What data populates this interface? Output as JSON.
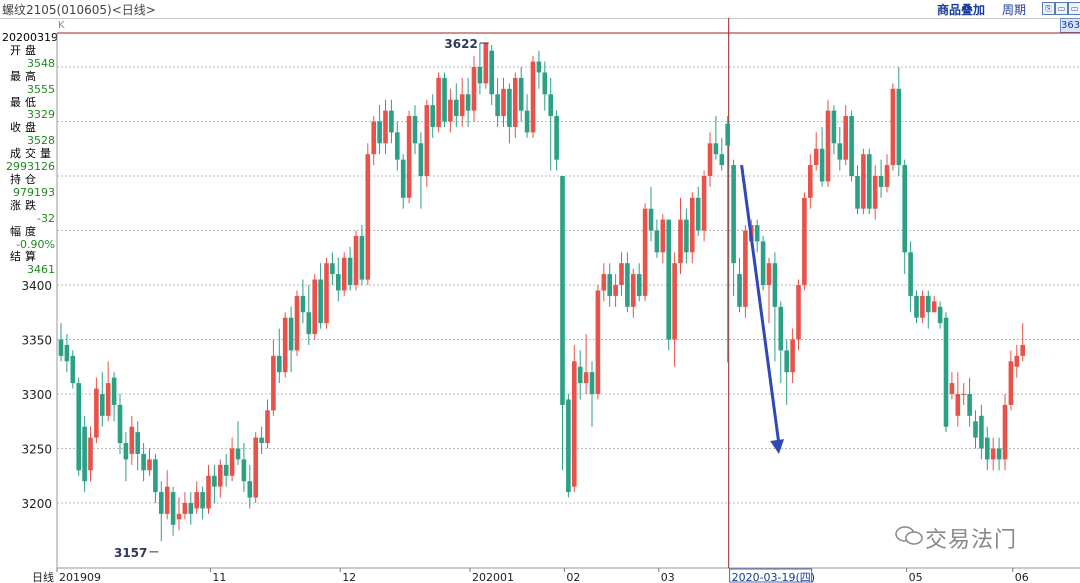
{
  "header": {
    "title": "螺纹2105(010605)<日线>",
    "overlay_label": "商品叠加",
    "period_label": "周期",
    "k_mark": "K",
    "corner_value": "363"
  },
  "info_panel": {
    "date": "20200319",
    "rows": [
      {
        "label": "开盘",
        "value": "3548"
      },
      {
        "label": "最高",
        "value": "3555"
      },
      {
        "label": "最低",
        "value": "3329"
      },
      {
        "label": "收盘",
        "value": "3528"
      },
      {
        "label": "成交量",
        "value": "2993126"
      },
      {
        "label": "持仓",
        "value": "979193"
      },
      {
        "label": "涨跌",
        "value": "-32"
      },
      {
        "label": "幅度",
        "value": "-0.90%"
      },
      {
        "label": "结算",
        "value": "3461"
      }
    ]
  },
  "watermark": "交易法门",
  "colors": {
    "up": "#e8524a",
    "down": "#2aa085",
    "grid": "#b9b9b9",
    "crosshair": "#a02020",
    "arrow": "#2f48b8",
    "axis_text": "#222222"
  },
  "chart_data": {
    "type": "candlestick",
    "title": "螺纹2105(010605)<日线>",
    "ylim": [
      3150,
      3640
    ],
    "y_ticks": [
      3200,
      3250,
      3300,
      3350,
      3400
    ],
    "x_axis_prefix": "日线",
    "x_ticks": [
      "201909",
      "11",
      "12",
      "202001",
      "02",
      "03",
      "2020-03-19(四)",
      "05",
      "06"
    ],
    "x_tick_index": [
      0,
      26,
      48,
      70,
      86,
      102,
      114,
      144,
      162
    ],
    "grid": true,
    "annotations": [
      {
        "text": "3622",
        "type": "high",
        "index": 72,
        "value": 3622
      },
      {
        "text": "3157",
        "type": "low",
        "index": 16,
        "value": 3157
      }
    ],
    "crosshair": {
      "index": 113,
      "value": 3640
    },
    "arrow": {
      "from_index": 114,
      "from_value": 3510,
      "to_index": 121,
      "to_value": 3245
    },
    "candles": [
      [
        3350,
        3335,
        3365,
        3330
      ],
      [
        3345,
        3330,
        3355,
        3320
      ],
      [
        3335,
        3310,
        3340,
        3305
      ],
      [
        3310,
        3230,
        3315,
        3225
      ],
      [
        3270,
        3220,
        3280,
        3210
      ],
      [
        3230,
        3260,
        3270,
        3220
      ],
      [
        3260,
        3305,
        3315,
        3255
      ],
      [
        3300,
        3280,
        3320,
        3270
      ],
      [
        3280,
        3310,
        3330,
        3275
      ],
      [
        3315,
        3290,
        3320,
        3275
      ],
      [
        3290,
        3255,
        3300,
        3245
      ],
      [
        3255,
        3240,
        3265,
        3220
      ],
      [
        3245,
        3270,
        3280,
        3235
      ],
      [
        3265,
        3245,
        3275,
        3230
      ],
      [
        3245,
        3230,
        3255,
        3220
      ],
      [
        3230,
        3240,
        3250,
        3225
      ],
      [
        3240,
        3210,
        3245,
        3200
      ],
      [
        3210,
        3190,
        3220,
        3165
      ],
      [
        3190,
        3215,
        3230,
        3185
      ],
      [
        3210,
        3180,
        3215,
        3170
      ],
      [
        3185,
        3190,
        3205,
        3175
      ],
      [
        3190,
        3200,
        3210,
        3185
      ],
      [
        3200,
        3190,
        3210,
        3180
      ],
      [
        3195,
        3210,
        3220,
        3190
      ],
      [
        3210,
        3195,
        3215,
        3185
      ],
      [
        3195,
        3225,
        3235,
        3190
      ],
      [
        3225,
        3215,
        3235,
        3200
      ],
      [
        3215,
        3235,
        3240,
        3205
      ],
      [
        3235,
        3225,
        3245,
        3215
      ],
      [
        3225,
        3250,
        3260,
        3220
      ],
      [
        3250,
        3240,
        3275,
        3235
      ],
      [
        3240,
        3220,
        3255,
        3210
      ],
      [
        3220,
        3205,
        3235,
        3195
      ],
      [
        3205,
        3260,
        3265,
        3200
      ],
      [
        3260,
        3255,
        3270,
        3245
      ],
      [
        3255,
        3285,
        3295,
        3250
      ],
      [
        3285,
        3335,
        3350,
        3280
      ],
      [
        3335,
        3320,
        3360,
        3310
      ],
      [
        3320,
        3370,
        3375,
        3315
      ],
      [
        3370,
        3340,
        3380,
        3320
      ],
      [
        3340,
        3390,
        3395,
        3335
      ],
      [
        3390,
        3375,
        3405,
        3365
      ],
      [
        3375,
        3355,
        3400,
        3345
      ],
      [
        3355,
        3405,
        3410,
        3350
      ],
      [
        3405,
        3365,
        3420,
        3360
      ],
      [
        3365,
        3420,
        3425,
        3360
      ],
      [
        3420,
        3410,
        3430,
        3400
      ],
      [
        3410,
        3395,
        3425,
        3385
      ],
      [
        3395,
        3425,
        3430,
        3390
      ],
      [
        3425,
        3400,
        3435,
        3395
      ],
      [
        3400,
        3445,
        3450,
        3395
      ],
      [
        3445,
        3405,
        3455,
        3400
      ],
      [
        3405,
        3520,
        3530,
        3400
      ],
      [
        3520,
        3550,
        3555,
        3510
      ],
      [
        3550,
        3530,
        3565,
        3520
      ],
      [
        3530,
        3560,
        3570,
        3520
      ],
      [
        3560,
        3540,
        3570,
        3530
      ],
      [
        3540,
        3515,
        3550,
        3505
      ],
      [
        3515,
        3480,
        3520,
        3470
      ],
      [
        3480,
        3555,
        3560,
        3475
      ],
      [
        3555,
        3530,
        3565,
        3520
      ],
      [
        3530,
        3500,
        3540,
        3470
      ],
      [
        3500,
        3565,
        3570,
        3490
      ],
      [
        3565,
        3545,
        3575,
        3535
      ],
      [
        3545,
        3590,
        3595,
        3540
      ],
      [
        3590,
        3550,
        3595,
        3545
      ],
      [
        3550,
        3570,
        3580,
        3540
      ],
      [
        3570,
        3555,
        3585,
        3545
      ],
      [
        3555,
        3575,
        3590,
        3545
      ],
      [
        3575,
        3560,
        3590,
        3545
      ],
      [
        3560,
        3600,
        3610,
        3550
      ],
      [
        3600,
        3585,
        3622,
        3575
      ],
      [
        3585,
        3622,
        3622,
        3580
      ],
      [
        3615,
        3575,
        3620,
        3565
      ],
      [
        3575,
        3555,
        3590,
        3545
      ],
      [
        3555,
        3580,
        3590,
        3545
      ],
      [
        3580,
        3545,
        3585,
        3530
      ],
      [
        3545,
        3590,
        3595,
        3535
      ],
      [
        3590,
        3560,
        3600,
        3550
      ],
      [
        3560,
        3540,
        3575,
        3535
      ],
      [
        3540,
        3605,
        3610,
        3535
      ],
      [
        3605,
        3595,
        3615,
        3580
      ],
      [
        3595,
        3575,
        3605,
        3560
      ],
      [
        3575,
        3555,
        3590,
        3505
      ],
      [
        3555,
        3515,
        3560,
        3505
      ],
      [
        3500,
        3290,
        3500,
        3230
      ],
      [
        3295,
        3210,
        3300,
        3205
      ],
      [
        3215,
        3330,
        3345,
        3210
      ],
      [
        3325,
        3310,
        3340,
        3295
      ],
      [
        3310,
        3320,
        3355,
        3300
      ],
      [
        3320,
        3300,
        3330,
        3270
      ],
      [
        3300,
        3395,
        3400,
        3295
      ],
      [
        3395,
        3410,
        3420,
        3385
      ],
      [
        3410,
        3390,
        3420,
        3380
      ],
      [
        3390,
        3400,
        3410,
        3380
      ],
      [
        3400,
        3420,
        3430,
        3390
      ],
      [
        3420,
        3380,
        3430,
        3375
      ],
      [
        3380,
        3410,
        3415,
        3370
      ],
      [
        3410,
        3390,
        3420,
        3385
      ],
      [
        3390,
        3470,
        3475,
        3385
      ],
      [
        3470,
        3450,
        3490,
        3440
      ],
      [
        3450,
        3430,
        3460,
        3425
      ],
      [
        3430,
        3460,
        3465,
        3420
      ],
      [
        3460,
        3350,
        3460,
        3340
      ],
      [
        3350,
        3420,
        3430,
        3325
      ],
      [
        3420,
        3460,
        3480,
        3410
      ],
      [
        3460,
        3430,
        3470,
        3420
      ],
      [
        3430,
        3480,
        3485,
        3420
      ],
      [
        3480,
        3450,
        3490,
        3445
      ],
      [
        3450,
        3500,
        3505,
        3440
      ],
      [
        3500,
        3530,
        3540,
        3490
      ],
      [
        3530,
        3520,
        3555,
        3515
      ],
      [
        3520,
        3510,
        3535,
        3505
      ],
      [
        3548,
        3528,
        3555,
        3329
      ],
      [
        3510,
        3420,
        3515,
        3390
      ],
      [
        3410,
        3380,
        3425,
        3375
      ],
      [
        3380,
        3450,
        3455,
        3370
      ],
      [
        3440,
        3455,
        3460,
        3435
      ],
      [
        3455,
        3440,
        3460,
        3430
      ],
      [
        3440,
        3400,
        3445,
        3395
      ],
      [
        3400,
        3420,
        3425,
        3365
      ],
      [
        3420,
        3380,
        3430,
        3330
      ],
      [
        3380,
        3340,
        3385,
        3310
      ],
      [
        3340,
        3320,
        3350,
        3290
      ],
      [
        3320,
        3350,
        3360,
        3310
      ],
      [
        3350,
        3400,
        3405,
        3340
      ],
      [
        3400,
        3480,
        3485,
        3395
      ],
      [
        3480,
        3510,
        3520,
        3470
      ],
      [
        3510,
        3525,
        3540,
        3505
      ],
      [
        3525,
        3495,
        3545,
        3490
      ],
      [
        3495,
        3560,
        3570,
        3490
      ],
      [
        3560,
        3530,
        3565,
        3520
      ],
      [
        3530,
        3515,
        3545,
        3505
      ],
      [
        3515,
        3555,
        3565,
        3510
      ],
      [
        3555,
        3500,
        3560,
        3495
      ],
      [
        3500,
        3470,
        3510,
        3465
      ],
      [
        3470,
        3520,
        3525,
        3465
      ],
      [
        3520,
        3470,
        3525,
        3465
      ],
      [
        3470,
        3500,
        3510,
        3460
      ],
      [
        3500,
        3490,
        3515,
        3480
      ],
      [
        3490,
        3510,
        3520,
        3485
      ],
      [
        3510,
        3580,
        3585,
        3505
      ],
      [
        3580,
        3510,
        3600,
        3500
      ],
      [
        3510,
        3430,
        3515,
        3410
      ],
      [
        3430,
        3390,
        3440,
        3375
      ],
      [
        3390,
        3370,
        3395,
        3365
      ],
      [
        3370,
        3390,
        3395,
        3365
      ],
      [
        3390,
        3375,
        3395,
        3360
      ],
      [
        3375,
        3385,
        3390,
        3375
      ],
      [
        3380,
        3365,
        3385,
        3360
      ],
      [
        3370,
        3270,
        3375,
        3265
      ],
      [
        3300,
        3310,
        3320,
        3295
      ],
      [
        3280,
        3300,
        3320,
        3270
      ],
      [
        3300,
        3300,
        3310,
        3290
      ],
      [
        3300,
        3280,
        3315,
        3270
      ],
      [
        3275,
        3260,
        3285,
        3250
      ],
      [
        3280,
        3250,
        3290,
        3240
      ],
      [
        3260,
        3240,
        3270,
        3230
      ],
      [
        3240,
        3250,
        3260,
        3230
      ],
      [
        3250,
        3240,
        3260,
        3230
      ],
      [
        3240,
        3290,
        3300,
        3230
      ],
      [
        3290,
        3330,
        3340,
        3285
      ],
      [
        3325,
        3335,
        3345,
        3315
      ],
      [
        3335,
        3345,
        3365,
        3330
      ]
    ]
  }
}
